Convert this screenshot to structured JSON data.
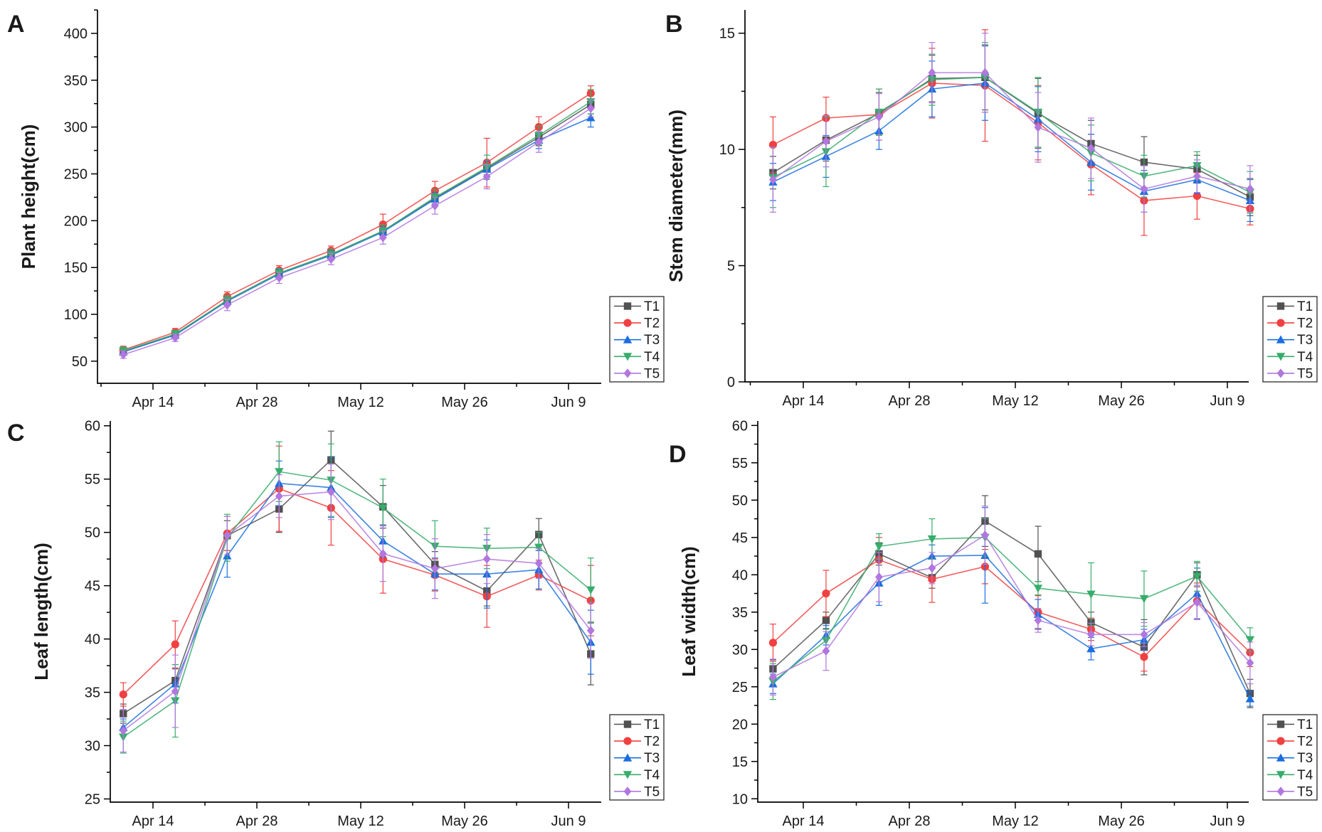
{
  "figure": {
    "title": "",
    "description": "Four-panel plant growth time-series figure with treatments T1-T5",
    "panel_letters": [
      "A",
      "B",
      "C",
      "D"
    ],
    "background": "#ffffff"
  },
  "legend": {
    "entries": [
      "T1",
      "T2",
      "T3",
      "T4",
      "T5"
    ],
    "position": "inside-bottom-right"
  },
  "colors": {
    "T1": "#515151",
    "T2": "#F14040",
    "T3": "#1A6FDF",
    "T4": "#37AD6B",
    "T5": "#B177DE"
  },
  "markers": {
    "T1": "square",
    "T2": "circle",
    "T3": "triangle-up",
    "T4": "triangle-down",
    "T5": "diamond"
  },
  "chart_data": [
    {
      "panel": "A",
      "type": "line",
      "ylabel": "Plant height(cm)",
      "xlabel": "",
      "ylim": [
        26.4,
        425
      ],
      "yticks": [
        50,
        100,
        150,
        200,
        250,
        300,
        350,
        400
      ],
      "y_minor_step": 25,
      "x_dates": [
        "Apr 10",
        "Apr 17",
        "Apr 24",
        "May 1",
        "May 8",
        "May 15",
        "May 22",
        "May 29",
        "Jun 5",
        "Jun 12"
      ],
      "x_days": [
        3,
        10,
        17,
        24,
        31,
        38,
        45,
        52,
        59,
        66
      ],
      "x_tick_labels": [
        "Apr 14",
        "Apr 28",
        "May 12",
        "May 26",
        "Jun 9"
      ],
      "x_tick_days": [
        7,
        21,
        35,
        49,
        63
      ],
      "x_minor_days": [
        0,
        14,
        28,
        42,
        56
      ],
      "grid": false,
      "legend_position": "inside-bottom-right",
      "series": [
        {
          "name": "T1",
          "color": "#515151",
          "marker": "square",
          "values": [
            60,
            78,
            115,
            144,
            164,
            189,
            224,
            256,
            289,
            324
          ],
          "errors": [
            3,
            3,
            4,
            4,
            4,
            5,
            6,
            7,
            9,
            10
          ]
        },
        {
          "name": "T2",
          "color": "#F14040",
          "marker": "circle",
          "values": [
            62,
            81,
            119,
            147,
            168,
            196,
            232,
            262,
            300,
            336
          ],
          "errors": [
            4,
            4,
            5,
            5,
            5,
            11,
            10,
            26,
            11,
            8
          ]
        },
        {
          "name": "T3",
          "color": "#1A6FDF",
          "marker": "triangle-up",
          "values": [
            60,
            78,
            114,
            143,
            163,
            188,
            223,
            255,
            286,
            310
          ],
          "errors": [
            3,
            4,
            4,
            5,
            5,
            6,
            7,
            8,
            9,
            10
          ]
        },
        {
          "name": "T4",
          "color": "#37AD6B",
          "marker": "triangle-down",
          "values": [
            61,
            79,
            115,
            144,
            164,
            189,
            225,
            257,
            291,
            327
          ],
          "errors": [
            4,
            4,
            5,
            5,
            6,
            7,
            8,
            13,
            10,
            13
          ]
        },
        {
          "name": "T5",
          "color": "#B177DE",
          "marker": "diamond",
          "values": [
            57,
            75,
            110,
            139,
            159,
            182,
            216,
            247,
            284,
            320
          ],
          "errors": [
            4,
            4,
            6,
            6,
            6,
            7,
            9,
            13,
            11,
            9
          ]
        }
      ]
    },
    {
      "panel": "B",
      "type": "line",
      "ylabel": "Stem diameter(mm)",
      "xlabel": "",
      "ylim": [
        0,
        16
      ],
      "yticks": [
        0,
        5,
        10,
        15
      ],
      "y_minor_step": 2.5,
      "x_dates": [
        "Apr 10",
        "Apr 17",
        "Apr 24",
        "May 1",
        "May 8",
        "May 15",
        "May 22",
        "May 29",
        "Jun 5",
        "Jun 12"
      ],
      "x_days": [
        3,
        10,
        17,
        24,
        31,
        38,
        45,
        52,
        59,
        66
      ],
      "x_tick_labels": [
        "Apr 14",
        "Apr 28",
        "May 12",
        "May 26",
        "Jun 9"
      ],
      "x_tick_days": [
        7,
        21,
        35,
        49,
        63
      ],
      "x_minor_days": [
        0,
        14,
        28,
        42,
        56
      ],
      "grid": false,
      "legend_position": "inside-bottom-right",
      "series": [
        {
          "name": "T1",
          "color": "#515151",
          "marker": "square",
          "values": [
            9.0,
            10.4,
            11.55,
            13.05,
            13.1,
            11.55,
            10.25,
            9.45,
            9.15,
            7.95
          ],
          "errors": [
            0.7,
            0.9,
            0.9,
            1.0,
            1.4,
            1.5,
            1.0,
            1.1,
            0.6,
            0.8
          ]
        },
        {
          "name": "T2",
          "color": "#F14040",
          "marker": "circle",
          "values": [
            10.2,
            11.35,
            11.5,
            12.85,
            12.75,
            11.15,
            9.35,
            7.8,
            8.0,
            7.45
          ],
          "errors": [
            1.2,
            0.9,
            1.1,
            1.5,
            2.4,
            1.6,
            1.3,
            1.5,
            1.0,
            0.7
          ]
        },
        {
          "name": "T3",
          "color": "#1A6FDF",
          "marker": "triangle-up",
          "values": [
            8.6,
            9.7,
            10.8,
            12.6,
            12.85,
            11.3,
            9.45,
            8.2,
            8.7,
            7.8
          ],
          "errors": [
            0.8,
            0.9,
            0.8,
            1.2,
            1.6,
            1.4,
            1.2,
            0.9,
            0.6,
            0.9
          ]
        },
        {
          "name": "T4",
          "color": "#37AD6B",
          "marker": "triangle-down",
          "values": [
            8.8,
            9.9,
            11.6,
            13.0,
            13.1,
            11.6,
            9.85,
            8.85,
            9.3,
            8.15
          ],
          "errors": [
            1.3,
            1.5,
            1.0,
            1.1,
            1.5,
            1.5,
            1.2,
            0.9,
            0.6,
            0.9
          ]
        },
        {
          "name": "T5",
          "color": "#B177DE",
          "marker": "diamond",
          "values": [
            8.7,
            10.35,
            11.4,
            13.3,
            13.3,
            10.95,
            10.05,
            8.3,
            8.85,
            8.3
          ],
          "errors": [
            1.4,
            1.1,
            1.0,
            1.3,
            1.7,
            1.5,
            1.3,
            1.0,
            0.7,
            1.0
          ]
        }
      ]
    },
    {
      "panel": "C",
      "type": "line",
      "ylabel": "Leaf length(cm)",
      "xlabel": "",
      "ylim": [
        24.7,
        60.45
      ],
      "yticks": [
        25,
        30,
        35,
        40,
        45,
        50,
        55,
        60
      ],
      "y_minor_step": 2.5,
      "x_dates": [
        "Apr 10",
        "Apr 17",
        "Apr 24",
        "May 1",
        "May 8",
        "May 15",
        "May 22",
        "May 29",
        "Jun 5",
        "Jun 12"
      ],
      "x_days": [
        3,
        10,
        17,
        24,
        31,
        38,
        45,
        52,
        59,
        66
      ],
      "x_tick_labels": [
        "Apr 14",
        "Apr 28",
        "May 12",
        "May 26",
        "Jun 9"
      ],
      "x_tick_days": [
        7,
        21,
        35,
        49,
        63
      ],
      "x_minor_days": [
        0,
        14,
        28,
        42,
        56
      ],
      "grid": false,
      "legend_position": "inside-bottom-right",
      "series": [
        {
          "name": "T1",
          "color": "#515151",
          "marker": "square",
          "values": [
            33.0,
            36.1,
            49.7,
            52.2,
            56.8,
            52.4,
            47.0,
            44.5,
            49.8,
            38.6
          ],
          "errors": [
            0.9,
            1.1,
            1.4,
            2.2,
            2.7,
            2.0,
            1.2,
            1.4,
            1.5,
            2.9
          ]
        },
        {
          "name": "T2",
          "color": "#F14040",
          "marker": "circle",
          "values": [
            34.8,
            39.5,
            49.9,
            54.1,
            52.3,
            47.5,
            46.0,
            44.0,
            46.0,
            43.6
          ],
          "errors": [
            1.1,
            2.2,
            1.6,
            4.0,
            3.5,
            3.2,
            1.5,
            2.9,
            1.4,
            3.3
          ]
        },
        {
          "name": "T3",
          "color": "#1A6FDF",
          "marker": "triangle-up",
          "values": [
            31.7,
            35.8,
            47.8,
            54.6,
            54.2,
            49.2,
            46.1,
            46.1,
            46.5,
            39.7
          ],
          "errors": [
            0.8,
            1.8,
            2.0,
            2.1,
            2.8,
            1.5,
            1.5,
            3.2,
            1.8,
            3.0
          ]
        },
        {
          "name": "T4",
          "color": "#37AD6B",
          "marker": "triangle-down",
          "values": [
            30.8,
            34.2,
            49.5,
            55.7,
            54.9,
            52.3,
            48.7,
            48.5,
            48.6,
            44.6
          ],
          "errors": [
            1.5,
            3.4,
            2.2,
            2.8,
            3.4,
            2.7,
            2.4,
            1.9,
            1.4,
            3.0
          ]
        },
        {
          "name": "T5",
          "color": "#B177DE",
          "marker": "diamond",
          "values": [
            31.4,
            35.1,
            49.7,
            53.4,
            53.8,
            48.0,
            46.6,
            47.5,
            47.1,
            40.8
          ],
          "errors": [
            2.0,
            3.4,
            1.8,
            2.0,
            2.6,
            2.6,
            2.8,
            2.3,
            1.4,
            2.6
          ]
        }
      ]
    },
    {
      "panel": "D",
      "type": "line",
      "ylabel": "Leaf width(cm)",
      "xlabel": "",
      "ylim": [
        9.55,
        60.6
      ],
      "yticks": [
        10,
        15,
        20,
        25,
        30,
        35,
        40,
        45,
        50,
        55,
        60
      ],
      "y_minor_step": 2.5,
      "x_dates": [
        "Apr 10",
        "Apr 17",
        "Apr 24",
        "May 1",
        "May 8",
        "May 15",
        "May 22",
        "May 29",
        "Jun 5",
        "Jun 12"
      ],
      "x_days": [
        3,
        10,
        17,
        24,
        31,
        38,
        45,
        52,
        59,
        66
      ],
      "x_tick_labels": [
        "Apr 14",
        "Apr 28",
        "May 12",
        "May 26",
        "Jun 9"
      ],
      "x_tick_days": [
        7,
        21,
        35,
        49,
        63
      ],
      "x_minor_days": [
        0,
        14,
        28,
        42,
        56
      ],
      "grid": false,
      "legend_position": "inside-bottom-right",
      "series": [
        {
          "name": "T1",
          "color": "#515151",
          "marker": "square",
          "values": [
            27.4,
            33.9,
            42.8,
            39.6,
            47.2,
            42.8,
            33.6,
            30.3,
            40.0,
            24.1
          ],
          "errors": [
            1.2,
            1.1,
            1.5,
            1.4,
            3.4,
            3.7,
            1.4,
            3.7,
            1.6,
            1.9
          ]
        },
        {
          "name": "T2",
          "color": "#F14040",
          "marker": "circle",
          "values": [
            30.9,
            37.5,
            42.0,
            39.4,
            41.1,
            35.0,
            32.7,
            29.0,
            36.5,
            29.6
          ],
          "errors": [
            2.5,
            3.1,
            3.0,
            3.1,
            2.3,
            2.2,
            1.5,
            1.9,
            2.4,
            1.9
          ]
        },
        {
          "name": "T3",
          "color": "#1A6FDF",
          "marker": "triangle-up",
          "values": [
            25.4,
            31.9,
            38.9,
            42.5,
            42.6,
            34.7,
            30.1,
            31.3,
            37.5,
            23.4
          ],
          "errors": [
            1.3,
            1.3,
            3.0,
            1.5,
            6.4,
            2.0,
            1.5,
            1.4,
            3.4,
            1.0
          ]
        },
        {
          "name": "T4",
          "color": "#37AD6B",
          "marker": "triangle-down",
          "values": [
            25.7,
            31.2,
            43.8,
            44.8,
            45.0,
            38.2,
            37.4,
            36.8,
            39.8,
            31.3
          ],
          "errors": [
            2.4,
            1.5,
            1.7,
            2.7,
            2.5,
            0.9,
            4.2,
            3.7,
            2.0,
            1.6
          ]
        },
        {
          "name": "T5",
          "color": "#B177DE",
          "marker": "diamond",
          "values": [
            26.3,
            29.8,
            39.7,
            40.9,
            45.3,
            33.9,
            32.0,
            32.0,
            36.3,
            28.2
          ],
          "errors": [
            2.4,
            2.6,
            3.3,
            2.1,
            3.9,
            1.6,
            1.5,
            1.6,
            2.3,
            2.8
          ]
        }
      ]
    }
  ]
}
